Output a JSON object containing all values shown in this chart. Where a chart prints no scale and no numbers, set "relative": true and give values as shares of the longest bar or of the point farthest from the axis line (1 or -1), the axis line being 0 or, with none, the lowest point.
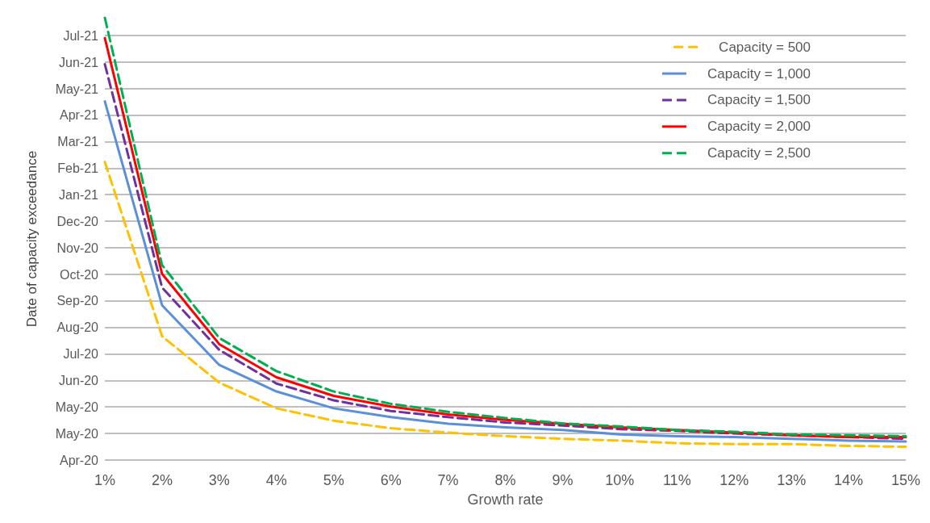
{
  "chart_data": {
    "type": "line",
    "relative": true,
    "xlabel": "Growth rate",
    "ylabel": "Date of capacity exceedance",
    "categories": [
      "1%",
      "2%",
      "3%",
      "4%",
      "5%",
      "6%",
      "7%",
      "8%",
      "9%",
      "10%",
      "11%",
      "12%",
      "13%",
      "14%",
      "15%"
    ],
    "annotations": [
      "Apr-20",
      "May-20",
      "May-20",
      "Jun-20",
      "Jul-20",
      "Aug-20",
      "Sep-20",
      "Oct-20",
      "Nov-20",
      "Dec-20",
      "Jan-21",
      "Feb-21",
      "Mar-21",
      "Apr-21",
      "May-21",
      "Jun-21",
      "Jul-21"
    ],
    "grid": "y",
    "legend": "top right",
    "marker": "none",
    "series": [
      {
        "name": "Capacity = 500",
        "color": "#ffc000",
        "line_style": "dashed",
        "values": [
          0.674,
          0.28,
          0.175,
          0.117,
          0.089,
          0.072,
          0.062,
          0.054,
          0.048,
          0.044,
          0.038,
          0.036,
          0.036,
          0.032,
          0.03
        ]
      },
      {
        "name": "Capacity = 1,000",
        "color": "#5b8fd8",
        "line_style": "solid",
        "values": [
          0.811,
          0.35,
          0.215,
          0.155,
          0.117,
          0.097,
          0.082,
          0.074,
          0.068,
          0.058,
          0.054,
          0.052,
          0.048,
          0.044,
          0.042
        ]
      },
      {
        "name": "Capacity = 1,500",
        "color": "#7030a0",
        "line_style": "dashed",
        "values": [
          0.895,
          0.39,
          0.249,
          0.173,
          0.135,
          0.111,
          0.097,
          0.085,
          0.078,
          0.07,
          0.066,
          0.06,
          0.056,
          0.052,
          0.048
        ]
      },
      {
        "name": "Capacity = 2,000",
        "color": "#ff0000",
        "line_style": "solid",
        "values": [
          0.954,
          0.421,
          0.262,
          0.187,
          0.145,
          0.121,
          0.103,
          0.091,
          0.082,
          0.074,
          0.068,
          0.062,
          0.056,
          0.052,
          0.052
        ]
      },
      {
        "name": "Capacity = 2,500",
        "color": "#00b050",
        "line_style": "dashed",
        "values": [
          1,
          0.441,
          0.276,
          0.201,
          0.155,
          0.127,
          0.109,
          0.095,
          0.083,
          0.076,
          0.068,
          0.064,
          0.058,
          0.056,
          0.054
        ]
      }
    ]
  }
}
